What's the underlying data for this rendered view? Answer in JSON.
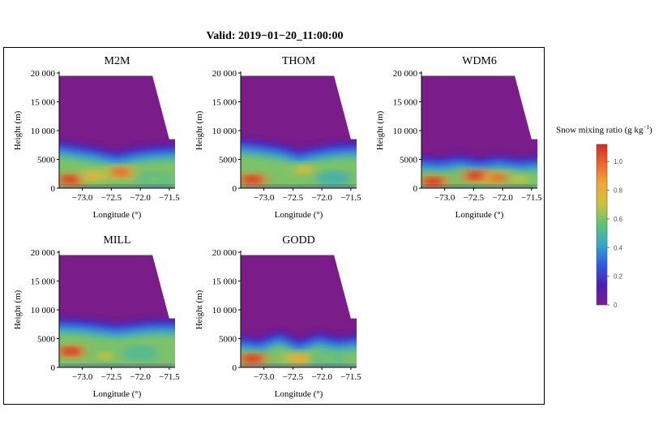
{
  "title": "Valid: 2019−01−20_11:00:00",
  "colorbar": {
    "label": "Snow mixing ratio (g kg",
    "label_sup": "−1",
    "label_end": ")",
    "range": [
      0,
      1.12
    ],
    "ticks": [
      0,
      0.2,
      0.4,
      0.6,
      0.8,
      1.0
    ],
    "tick_labels": [
      "0",
      "0.2",
      "0.4",
      "0.6",
      "0.8",
      "1.0"
    ],
    "colors": [
      "#7a1d8a",
      "#4b1fb3",
      "#2f5ce0",
      "#38a6c8",
      "#5cc27a",
      "#c9c340",
      "#f0a93a",
      "#ee6a2c",
      "#d62a22"
    ]
  },
  "chart_data": [
    {
      "type": "heatmap",
      "title": "M2M",
      "xlabel": "Longitude (°)",
      "ylabel": "Height (m)",
      "xlim": [
        -73.4,
        -71.4
      ],
      "ylim": [
        0,
        20000
      ],
      "xticks": [
        -73.0,
        -72.5,
        -72.0,
        -71.5
      ],
      "xtick_labels": [
        "−73.0",
        "−72.5",
        "−72.0",
        "−71.5"
      ],
      "yticks": [
        0,
        5000,
        10000,
        15000,
        20000
      ],
      "ytick_labels": [
        "0",
        "5000",
        "10 000",
        "15 000",
        "20 000"
      ],
      "top_height_m": [
        19500,
        19500,
        19500,
        19500,
        19500,
        19500,
        8500
      ],
      "top_height_lon": [
        -73.4,
        -72.8,
        -72.2,
        -71.9,
        -71.8,
        -71.79,
        -71.5
      ],
      "snow_top_m": [
        8500,
        7800,
        7200,
        6500,
        7200,
        7600,
        7800
      ],
      "blobs": [
        {
          "lon": -73.2,
          "z": 1500,
          "value": 1.1
        },
        {
          "lon": -72.35,
          "z": 2800,
          "value": 1.0
        },
        {
          "lon": -72.8,
          "z": 2200,
          "value": 0.8
        },
        {
          "lon": -71.75,
          "z": 1500,
          "value": 0.6
        }
      ]
    },
    {
      "type": "heatmap",
      "title": "THOM",
      "xlabel": "Longitude (°)",
      "ylabel": "Height (m)",
      "xlim": [
        -73.4,
        -71.4
      ],
      "ylim": [
        0,
        20000
      ],
      "xticks": [
        -73.0,
        -72.5,
        -72.0,
        -71.5
      ],
      "xtick_labels": [
        "−73.0",
        "−72.5",
        "−72.0",
        "−71.5"
      ],
      "yticks": [
        0,
        5000,
        10000,
        15000,
        20000
      ],
      "ytick_labels": [
        "0",
        "5000",
        "10 000",
        "15 000",
        "20 000"
      ],
      "top_height_m": [
        19500,
        19500,
        19500,
        19500,
        19500,
        19500,
        8500
      ],
      "top_height_lon": [
        -73.4,
        -72.8,
        -72.2,
        -71.9,
        -71.8,
        -71.79,
        -71.5
      ],
      "snow_top_m": [
        8800,
        8300,
        7800,
        6800,
        7500,
        8000,
        8200
      ],
      "blobs": [
        {
          "lon": -73.2,
          "z": 1500,
          "value": 1.1
        },
        {
          "lon": -72.3,
          "z": 3200,
          "value": 0.75
        },
        {
          "lon": -71.8,
          "z": 1800,
          "value": 0.5
        }
      ]
    },
    {
      "type": "heatmap",
      "title": "WDM6",
      "xlabel": "Longitude (°)",
      "ylabel": "Height (m)",
      "xlim": [
        -73.4,
        -71.4
      ],
      "ylim": [
        0,
        20000
      ],
      "xticks": [
        -73.0,
        -72.5,
        -72.0,
        -71.5
      ],
      "xtick_labels": [
        "−73.0",
        "−72.5",
        "−72.0",
        "−71.5"
      ],
      "yticks": [
        0,
        5000,
        10000,
        15000,
        20000
      ],
      "ytick_labels": [
        "0",
        "5000",
        "10 000",
        "15 000",
        "20 000"
      ],
      "top_height_m": [
        19500,
        19500,
        19500,
        19500,
        19500,
        19500,
        8500
      ],
      "top_height_lon": [
        -73.4,
        -72.8,
        -72.2,
        -71.9,
        -71.8,
        -71.79,
        -71.5
      ],
      "snow_top_m": [
        5800,
        5500,
        6000,
        5400,
        5900,
        5500,
        5800
      ],
      "blobs": [
        {
          "lon": -73.2,
          "z": 1200,
          "value": 1.1
        },
        {
          "lon": -72.45,
          "z": 2200,
          "value": 1.1
        },
        {
          "lon": -72.05,
          "z": 1800,
          "value": 1.0
        },
        {
          "lon": -71.7,
          "z": 1500,
          "value": 0.7
        }
      ]
    },
    {
      "type": "heatmap",
      "title": "MILL",
      "xlabel": "Longitude (°)",
      "ylabel": "Height (m)",
      "xlim": [
        -73.4,
        -71.4
      ],
      "ylim": [
        0,
        20000
      ],
      "xticks": [
        -73.0,
        -72.5,
        -72.0,
        -71.5
      ],
      "xtick_labels": [
        "−73.0",
        "−72.5",
        "−72.0",
        "−71.5"
      ],
      "yticks": [
        0,
        5000,
        10000,
        15000,
        20000
      ],
      "ytick_labels": [
        "0",
        "5000",
        "10 000",
        "15 000",
        "20 000"
      ],
      "top_height_m": [
        19500,
        19500,
        19500,
        19500,
        19500,
        19500,
        8500
      ],
      "top_height_lon": [
        -73.4,
        -72.8,
        -72.2,
        -71.9,
        -71.8,
        -71.79,
        -71.5
      ],
      "snow_top_m": [
        8800,
        8600,
        8200,
        7800,
        8200,
        8500,
        8400
      ],
      "blobs": [
        {
          "lon": -73.2,
          "z": 2800,
          "value": 1.1
        },
        {
          "lon": -72.6,
          "z": 2000,
          "value": 0.7
        },
        {
          "lon": -72.0,
          "z": 2500,
          "value": 0.55
        }
      ]
    },
    {
      "type": "heatmap",
      "title": "GODD",
      "xlabel": "Longitude (°)",
      "ylabel": "Height (m)",
      "xlim": [
        -73.4,
        -71.4
      ],
      "ylim": [
        0,
        20000
      ],
      "xticks": [
        -73.0,
        -72.5,
        -72.0,
        -71.5
      ],
      "xtick_labels": [
        "−73.0",
        "−72.5",
        "−72.0",
        "−71.5"
      ],
      "yticks": [
        0,
        5000,
        10000,
        15000,
        20000
      ],
      "ytick_labels": [
        "0",
        "5000",
        "10 000",
        "15 000",
        "20 000"
      ],
      "top_height_m": [
        19500,
        19500,
        19500,
        19500,
        19500,
        19500,
        8500
      ],
      "top_height_lon": [
        -73.4,
        -72.8,
        -72.2,
        -71.9,
        -71.8,
        -71.79,
        -71.5
      ],
      "snow_top_m": [
        5800,
        5200,
        6500,
        5000,
        6200,
        5500,
        6000
      ],
      "blobs": [
        {
          "lon": -73.2,
          "z": 1500,
          "value": 1.1
        },
        {
          "lon": -72.4,
          "z": 1600,
          "value": 0.85
        },
        {
          "lon": -71.9,
          "z": 1500,
          "value": 0.6
        }
      ]
    }
  ]
}
